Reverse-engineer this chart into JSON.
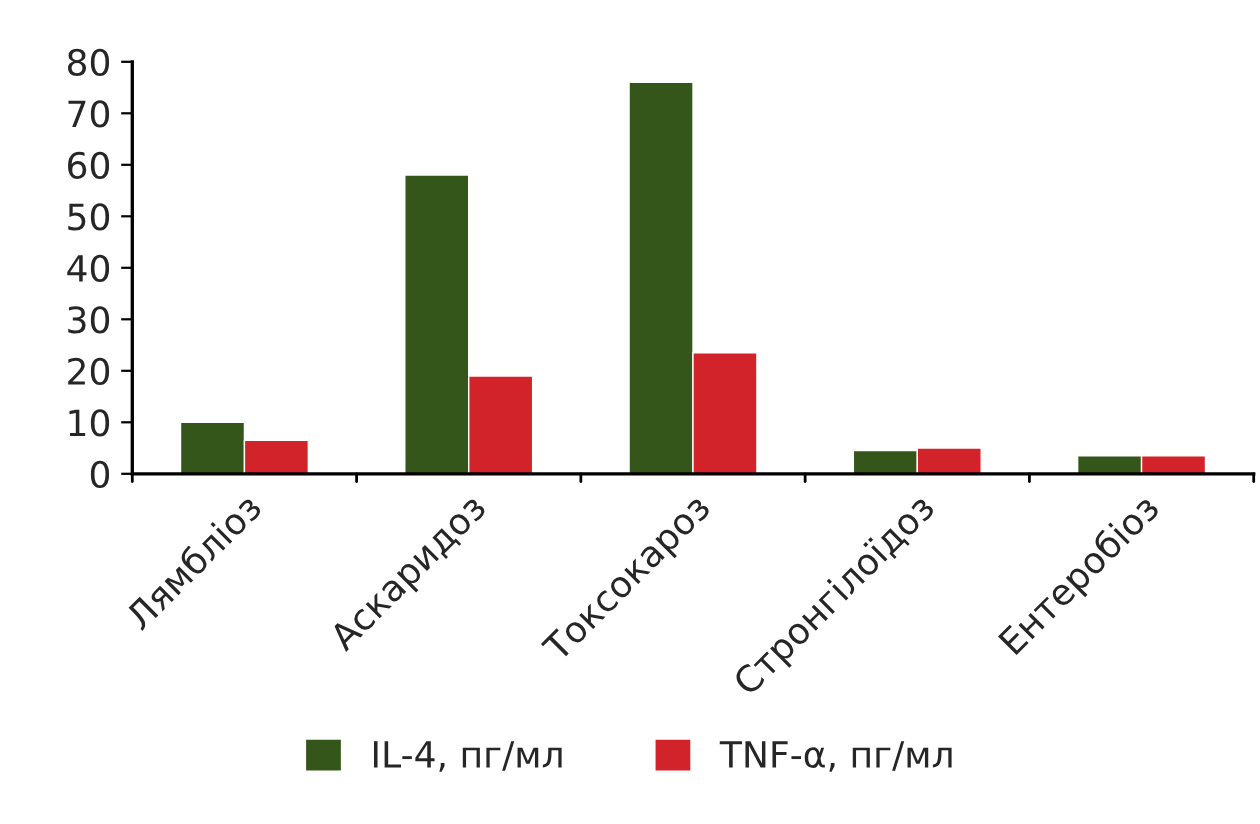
{
  "chart_data": {
    "type": "bar",
    "categories": [
      "Лямбліоз",
      "Аскаридоз",
      "Токсокароз",
      "Стронгілоїдоз",
      "Ентеробіоз"
    ],
    "series": [
      {
        "name": "IL-4, пг/мл",
        "color": "#35561a",
        "values": [
          10,
          58,
          76,
          4.5,
          3.5
        ]
      },
      {
        "name": "TNF-α, пг/мл",
        "color": "#d2232a",
        "values": [
          6.5,
          19,
          23.5,
          5,
          3.5
        ]
      }
    ],
    "ylim": [
      0,
      80
    ],
    "yticks": [
      0,
      10,
      20,
      30,
      40,
      50,
      60,
      70,
      80
    ],
    "grid": false,
    "legend": "bottom"
  }
}
